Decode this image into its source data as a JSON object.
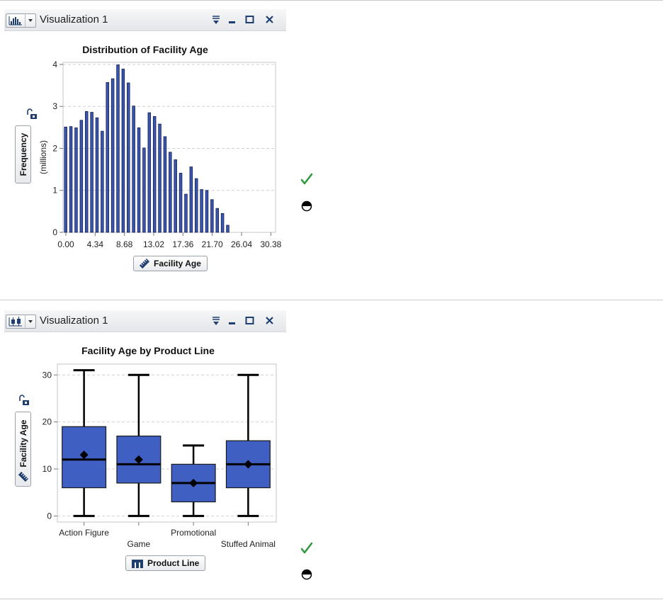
{
  "panels": [
    {
      "window_title": "Visualization 1",
      "type_icon": "histogram-icon",
      "x_axis_button": "Facility Age",
      "x_axis_icon": "measure-ruler-icon",
      "y_axis_button": "Frequency",
      "y_axis_units": "(millions)",
      "controls": [
        "menu-icon",
        "minimize-icon",
        "maximize-icon",
        "close-icon"
      ],
      "status_icons": [
        "checkmark-icon",
        "half-circle-icon"
      ]
    },
    {
      "window_title": "Visualization 1",
      "type_icon": "box-plot-icon",
      "x_axis_button": "Product Line",
      "x_axis_icon": "category-icon",
      "y_axis_button": "Facility Age",
      "y_axis_icon": "measure-ruler-icon",
      "controls": [
        "menu-icon",
        "minimize-icon",
        "maximize-icon",
        "close-icon"
      ],
      "status_icons": [
        "checkmark-icon",
        "half-circle-icon"
      ]
    }
  ],
  "colors": {
    "bar": "#3b55b0",
    "bar_edge": "#14224f",
    "box": "#3f5fc2",
    "check": "#2c9a3b",
    "icon": "#1f3d6e"
  },
  "chart_data": [
    {
      "type": "bar",
      "title": "Distribution of Facility Age",
      "xlabel": "Facility Age",
      "ylabel": "Frequency",
      "yunits": "(millions)",
      "x_ticks": [
        "0.00",
        "4.34",
        "8.68",
        "13.02",
        "17.36",
        "21.70",
        "26.04",
        "30.38"
      ],
      "x_tick_values": [
        0,
        4.34,
        8.68,
        13.02,
        17.36,
        21.7,
        26.04,
        30.38
      ],
      "xlim": [
        0,
        31.5
      ],
      "y_ticks": [
        0,
        1,
        2,
        3,
        4
      ],
      "ylim": [
        0,
        4.05
      ],
      "grid": true,
      "bin_width": 0.775,
      "values": [
        2.51,
        2.52,
        2.49,
        2.67,
        2.88,
        2.86,
        2.73,
        2.41,
        3.57,
        3.66,
        3.99,
        3.89,
        3.56,
        3.01,
        2.49,
        2.01,
        2.85,
        2.76,
        2.58,
        2.28,
        1.91,
        1.73,
        1.41,
        0.91,
        1.56,
        1.28,
        1.02,
        1.0,
        0.78,
        0.57,
        0.45,
        0.17
      ]
    },
    {
      "type": "box",
      "title": "Facility Age by Product Line",
      "xlabel": "Product Line",
      "ylabel": "Facility Age",
      "categories": [
        "Action Figure",
        "Game",
        "Promotional",
        "Stuffed Animal"
      ],
      "y_ticks": [
        0,
        10,
        20,
        30
      ],
      "ylim": [
        -1.3,
        32.3
      ],
      "grid": true,
      "boxes": [
        {
          "min": 0,
          "q1": 6,
          "median": 12,
          "q3": 19,
          "max": 31,
          "mean": 13
        },
        {
          "min": 0,
          "q1": 7,
          "median": 11,
          "q3": 17,
          "max": 30,
          "mean": 12
        },
        {
          "min": 0,
          "q1": 3,
          "median": 7,
          "q3": 11,
          "max": 15,
          "mean": 7
        },
        {
          "min": 0,
          "q1": 6,
          "median": 11,
          "q3": 16,
          "max": 30,
          "mean": 11
        }
      ]
    }
  ]
}
